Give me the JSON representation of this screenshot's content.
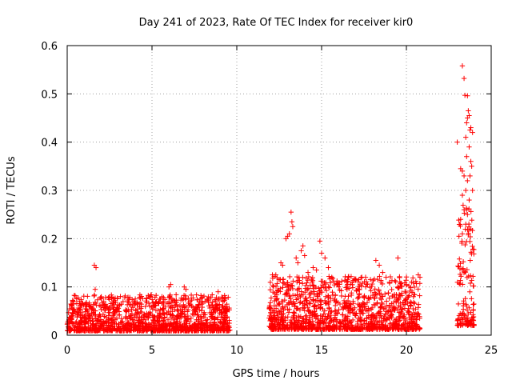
{
  "chart_data": {
    "type": "scatter",
    "title": "Day 241 of 2023, Rate Of TEC Index for receiver kir0",
    "xlabel": "GPS time / hours",
    "ylabel": "ROTI / TECUs",
    "xlim": [
      0,
      25
    ],
    "ylim": [
      0,
      0.6
    ],
    "xticks": [
      0,
      5,
      10,
      15,
      20,
      25
    ],
    "yticks": [
      0,
      0.1,
      0.2,
      0.3,
      0.4,
      0.5,
      0.6
    ],
    "xtick_labels": [
      "0",
      "5",
      "10",
      "15",
      "20",
      "25"
    ],
    "ytick_labels": [
      "0",
      "0.1",
      "0.2",
      "0.3",
      "0.4",
      "0.5",
      "0.6"
    ],
    "grid": true,
    "marker": "+",
    "color": "#ff0000",
    "outliers": [
      [
        1.6,
        0.145
      ],
      [
        1.7,
        0.14
      ],
      [
        1.65,
        0.095
      ],
      [
        6.0,
        0.1
      ],
      [
        6.1,
        0.105
      ],
      [
        6.9,
        0.1
      ],
      [
        7.0,
        0.095
      ],
      [
        8.3,
        0.075
      ],
      [
        8.9,
        0.09
      ],
      [
        12.1,
        0.125
      ],
      [
        12.3,
        0.125
      ],
      [
        12.6,
        0.15
      ],
      [
        12.7,
        0.145
      ],
      [
        12.9,
        0.2
      ],
      [
        13.0,
        0.205
      ],
      [
        13.1,
        0.21
      ],
      [
        13.2,
        0.255
      ],
      [
        13.25,
        0.235
      ],
      [
        13.3,
        0.225
      ],
      [
        13.5,
        0.16
      ],
      [
        13.6,
        0.15
      ],
      [
        13.8,
        0.175
      ],
      [
        13.9,
        0.185
      ],
      [
        14.0,
        0.165
      ],
      [
        14.2,
        0.13
      ],
      [
        14.5,
        0.14
      ],
      [
        14.7,
        0.135
      ],
      [
        14.9,
        0.195
      ],
      [
        15.0,
        0.17
      ],
      [
        15.2,
        0.16
      ],
      [
        15.4,
        0.14
      ],
      [
        15.6,
        0.12
      ],
      [
        16.0,
        0.1
      ],
      [
        16.5,
        0.095
      ],
      [
        17.2,
        0.095
      ],
      [
        17.6,
        0.1
      ],
      [
        18.2,
        0.155
      ],
      [
        18.4,
        0.145
      ],
      [
        18.6,
        0.13
      ],
      [
        18.8,
        0.12
      ],
      [
        19.5,
        0.16
      ],
      [
        20.0,
        0.105
      ],
      [
        20.3,
        0.11
      ],
      [
        20.7,
        0.125
      ],
      [
        20.8,
        0.12
      ],
      [
        23.0,
        0.4
      ],
      [
        23.2,
        0.345
      ],
      [
        23.3,
        0.558
      ],
      [
        23.4,
        0.532
      ],
      [
        23.45,
        0.497
      ],
      [
        23.6,
        0.496
      ],
      [
        23.65,
        0.465
      ],
      [
        23.7,
        0.455
      ],
      [
        23.6,
        0.45
      ],
      [
        23.55,
        0.44
      ],
      [
        23.75,
        0.425
      ],
      [
        23.8,
        0.43
      ],
      [
        23.5,
        0.41
      ],
      [
        23.7,
        0.39
      ],
      [
        23.8,
        0.36
      ],
      [
        23.3,
        0.34
      ],
      [
        23.4,
        0.33
      ],
      [
        23.6,
        0.32
      ],
      [
        23.5,
        0.3
      ],
      [
        23.3,
        0.29
      ],
      [
        23.7,
        0.28
      ],
      [
        23.4,
        0.26
      ],
      [
        23.6,
        0.25
      ],
      [
        23.2,
        0.24
      ],
      [
        23.5,
        0.23
      ],
      [
        23.8,
        0.22
      ],
      [
        23.3,
        0.21
      ],
      [
        23.1,
        0.205
      ],
      [
        23.9,
        0.3
      ],
      [
        23.85,
        0.35
      ],
      [
        23.9,
        0.42
      ],
      [
        23.75,
        0.33
      ],
      [
        23.55,
        0.37
      ]
    ],
    "clusters": [
      {
        "x0": 0.0,
        "x1": 9.6,
        "base": 0.045,
        "spread": 0.03
      },
      {
        "x0": 11.9,
        "x1": 20.8,
        "base": 0.06,
        "spread": 0.05
      },
      {
        "x0": 23.0,
        "x1": 24.0,
        "base": 0.1,
        "spread": 0.15
      }
    ]
  }
}
